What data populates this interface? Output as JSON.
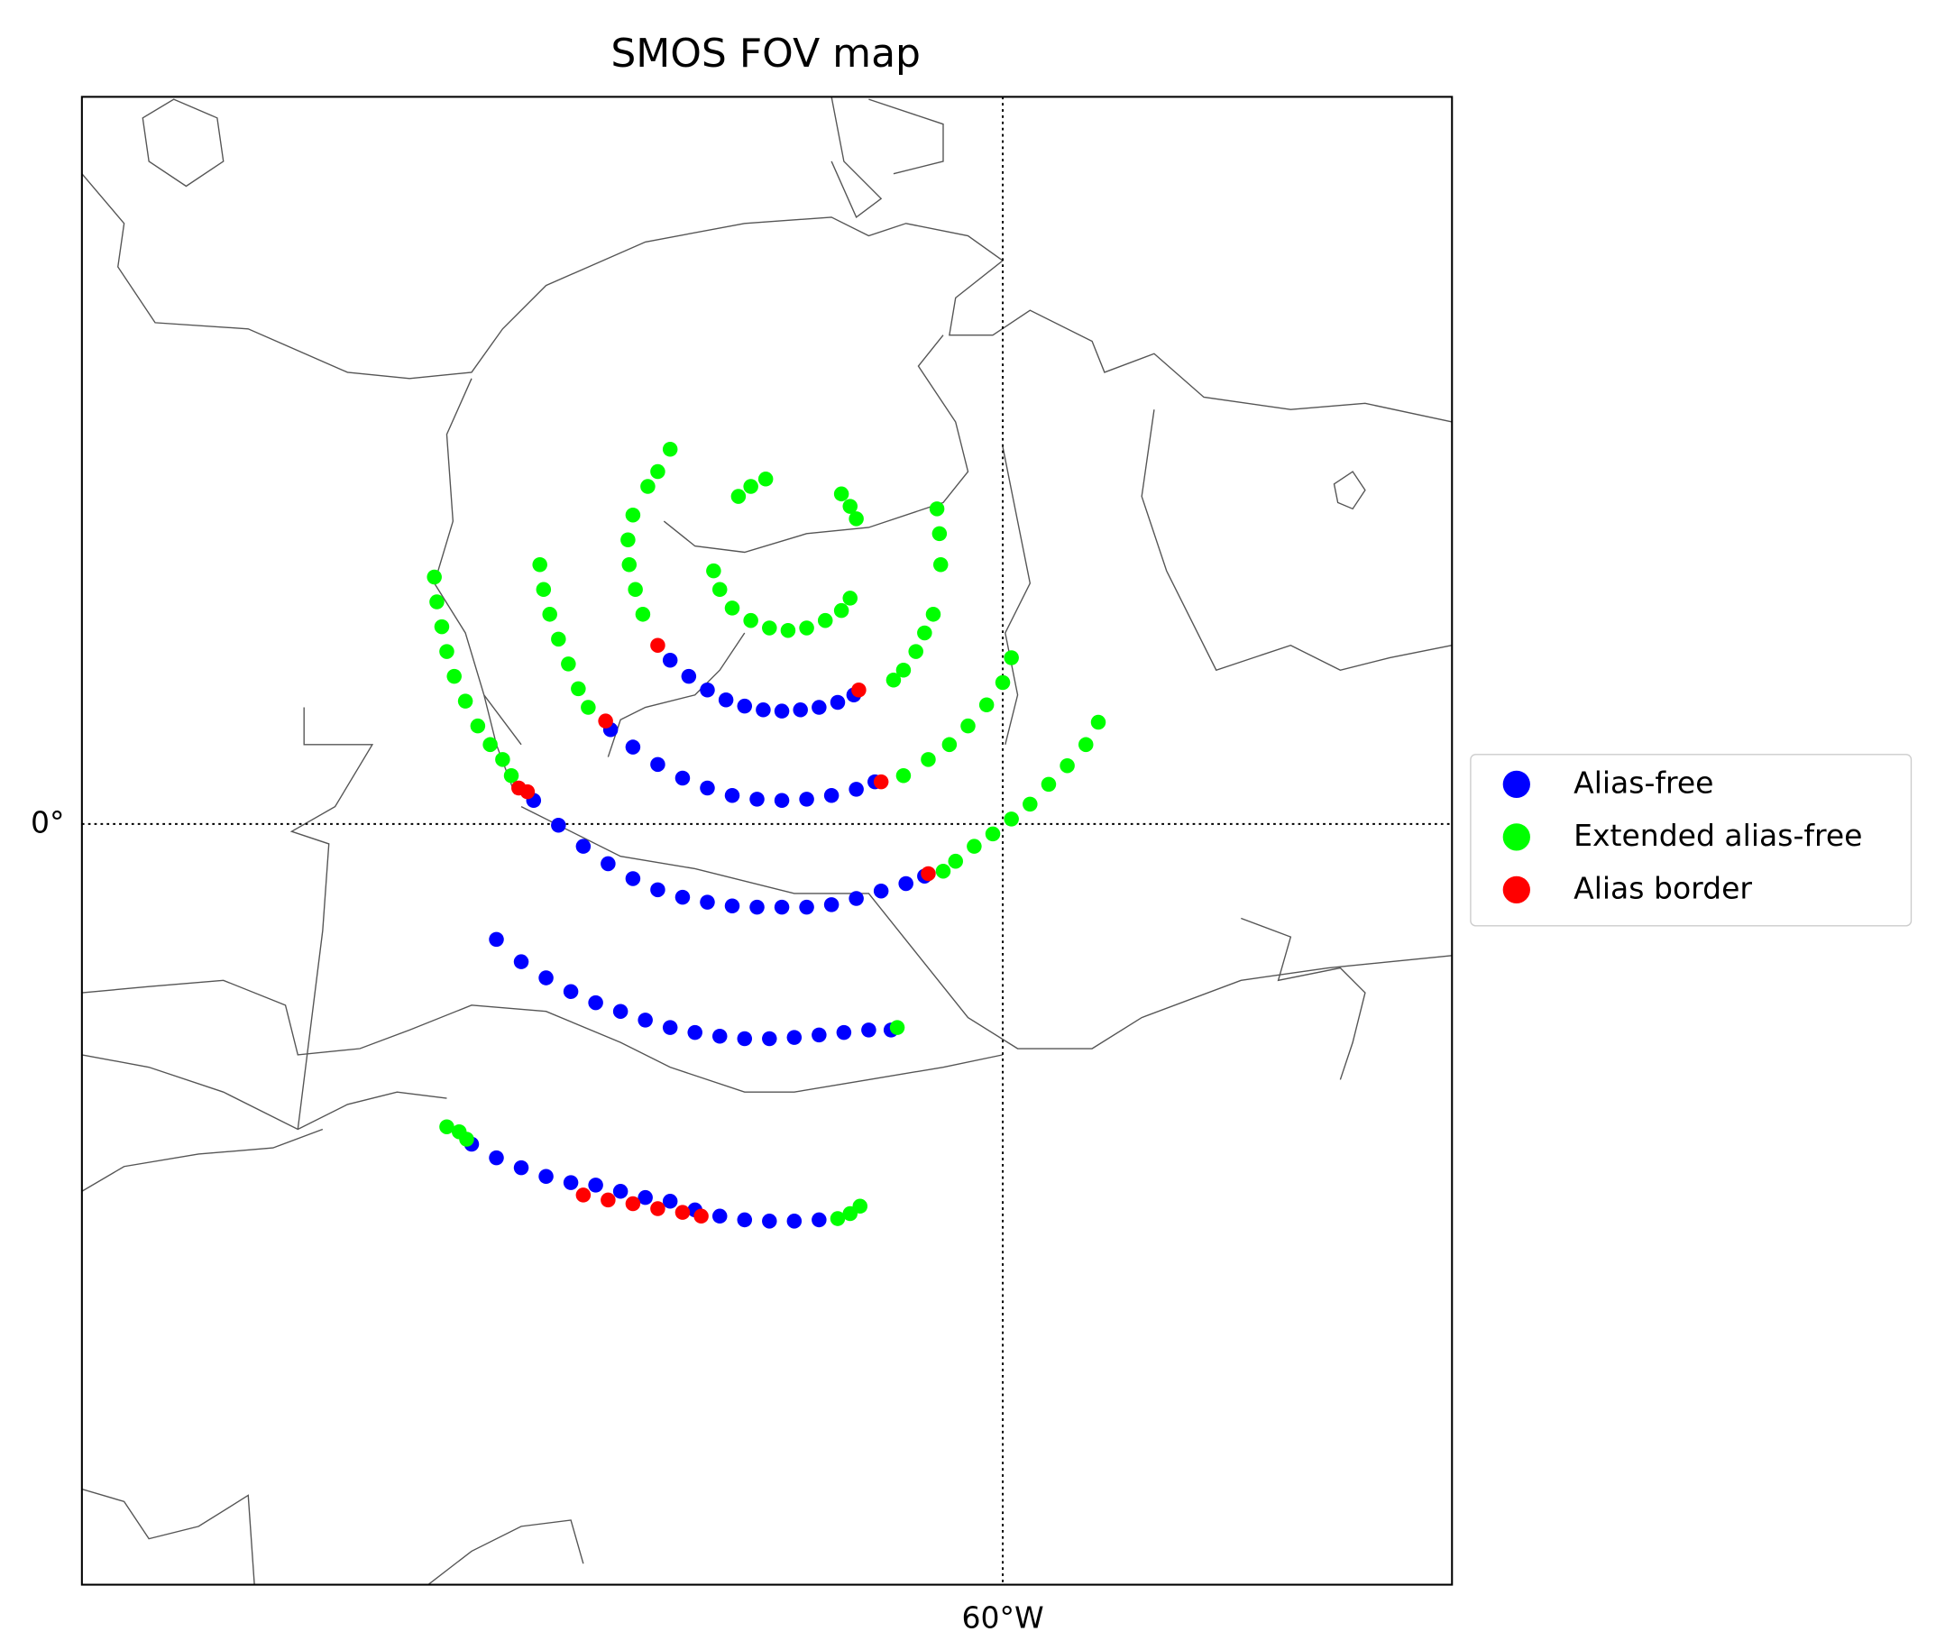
{
  "chart_data": {
    "type": "scatter",
    "title": "SMOS FOV map",
    "xlim": [
      -78.55,
      -50.95
    ],
    "ylim": [
      -15.325,
      14.65
    ],
    "xticks": [
      {
        "value": -60,
        "label": "60°W"
      }
    ],
    "yticks": [
      {
        "value": 0,
        "label": "0°"
      }
    ],
    "grid": true,
    "legend": "right",
    "series": [
      {
        "name": "Alias-free",
        "color": "#0000ff",
        "x": [
          -66.7,
          -66.325,
          -65.95,
          -65.575,
          -65.2,
          -64.825,
          -64.45,
          -64.075,
          -63.7,
          -63.325,
          -63.0,
          -67.9,
          -67.45,
          -66.95,
          -66.45,
          -65.95,
          -65.45,
          -64.95,
          -64.45,
          -63.95,
          -63.45,
          -62.95,
          -62.575,
          -69.45,
          -68.95,
          -68.45,
          -67.95,
          -67.45,
          -66.95,
          -66.45,
          -65.95,
          -65.45,
          -64.95,
          -64.45,
          -63.95,
          -63.45,
          -62.95,
          -62.45,
          -61.95,
          -61.575,
          -70.2,
          -69.7,
          -69.2,
          -68.7,
          -68.2,
          -67.7,
          -67.2,
          -66.7,
          -66.2,
          -65.7,
          -65.2,
          -64.7,
          -64.2,
          -63.7,
          -63.2,
          -62.7,
          -62.25,
          -70.7,
          -70.2,
          -69.7,
          -69.2,
          -68.7,
          -68.2,
          -67.7,
          -67.2,
          -66.7,
          -66.2,
          -65.7,
          -65.2,
          -64.7,
          -64.2,
          -63.7
        ],
        "y": [
          3.3,
          2.975,
          2.7,
          2.5,
          2.375,
          2.3,
          2.275,
          2.3,
          2.35,
          2.45,
          2.6,
          1.9,
          1.55,
          1.2,
          0.925,
          0.725,
          0.575,
          0.5,
          0.475,
          0.5,
          0.575,
          0.7,
          0.85,
          0.475,
          -0.025,
          -0.45,
          -0.8,
          -1.1,
          -1.325,
          -1.475,
          -1.575,
          -1.65,
          -1.675,
          -1.675,
          -1.675,
          -1.625,
          -1.5,
          -1.35,
          -1.2,
          -1.05,
          -2.325,
          -2.775,
          -3.1,
          -3.375,
          -3.6,
          -3.775,
          -3.95,
          -4.1,
          -4.2,
          -4.275,
          -4.325,
          -4.325,
          -4.3,
          -4.25,
          -4.2,
          -4.15,
          -4.15,
          -6.45,
          -6.725,
          -6.925,
          -7.1,
          -7.225,
          -7.275,
          -7.4,
          -7.525,
          -7.6,
          -7.775,
          -7.9,
          -7.975,
          -8.0,
          -8.0,
          -7.975
        ]
      },
      {
        "name": "Extended alias-free",
        "color": "#00ff00",
        "x": [
          -71.45,
          -71.4,
          -71.3,
          -71.2,
          -71.05,
          -70.825,
          -70.575,
          -70.325,
          -70.075,
          -69.9,
          -69.325,
          -69.25,
          -69.125,
          -68.95,
          -68.75,
          -68.55,
          -68.35,
          -66.7,
          -66.95,
          -67.15,
          -67.45,
          -67.55,
          -67.525,
          -67.4,
          -67.25,
          -65.325,
          -65.075,
          -64.775,
          -63.25,
          -63.075,
          -62.95,
          -65.825,
          -65.7,
          -65.45,
          -65.075,
          -64.7,
          -64.325,
          -63.95,
          -63.575,
          -63.25,
          -63.075,
          -61.325,
          -61.275,
          -61.25,
          -61.4,
          -61.575,
          -61.75,
          -62.0,
          -62.2,
          -59.825,
          -60.0,
          -60.325,
          -60.7,
          -61.075,
          -61.5,
          -62.0,
          -58.075,
          -58.325,
          -58.7,
          -59.075,
          -59.45,
          -59.825,
          -60.2,
          -60.575,
          -60.95,
          -61.2,
          -62.125,
          -71.2,
          -70.95,
          -70.8,
          -63.325,
          -63.075,
          -62.875
        ],
        "y": [
          4.975,
          4.475,
          3.975,
          3.475,
          2.975,
          2.475,
          1.975,
          1.6,
          1.3,
          0.975,
          5.225,
          4.725,
          4.225,
          3.725,
          3.225,
          2.725,
          2.35,
          7.55,
          7.1,
          6.8,
          6.225,
          5.725,
          5.225,
          4.725,
          4.225,
          6.6,
          6.8,
          6.95,
          6.65,
          6.4,
          6.15,
          5.1,
          4.725,
          4.35,
          4.1,
          3.95,
          3.9,
          3.95,
          4.1,
          4.3,
          4.55,
          6.35,
          5.85,
          5.225,
          4.225,
          3.85,
          3.475,
          3.1,
          2.9,
          3.35,
          2.85,
          2.4,
          1.975,
          1.6,
          1.3,
          0.975,
          2.05,
          1.6,
          1.175,
          0.8,
          0.4,
          0.1,
          -0.2,
          -0.45,
          -0.75,
          -0.95,
          -4.1,
          -6.1,
          -6.2,
          -6.35,
          -7.95,
          -7.85,
          -7.7
        ]
      },
      {
        "name": "Alias border",
        "color": "#ff0000",
        "x": [
          -69.75,
          -69.575,
          -68.0,
          -66.95,
          -62.9,
          -62.45,
          -61.5,
          -68.45,
          -67.95,
          -67.45,
          -66.95,
          -66.45,
          -66.075
        ],
        "y": [
          0.725,
          0.65,
          2.075,
          3.6,
          2.7,
          0.85,
          -1.0,
          -7.475,
          -7.575,
          -7.65,
          -7.75,
          -7.825,
          -7.9
        ]
      }
    ]
  }
}
